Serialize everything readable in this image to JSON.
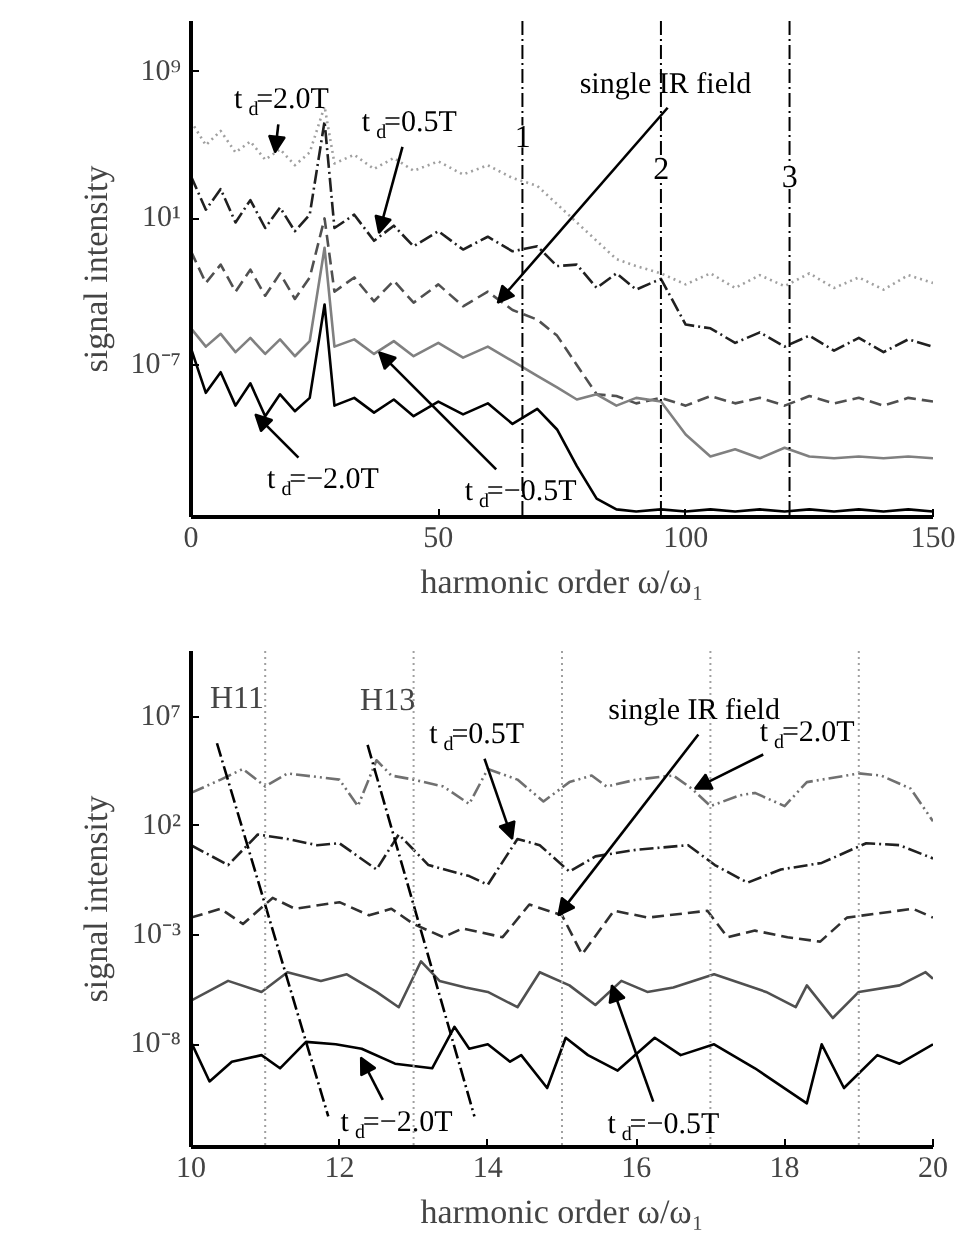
{
  "chart_data": [
    {
      "type": "line",
      "xlabel": "harmonic order ω/ω₁",
      "ylabel": "signal intensity",
      "log": "y",
      "grid": false,
      "xlim": [
        0,
        150
      ],
      "xticks": [
        0,
        50,
        100,
        150
      ],
      "ylim": [
        5e-16,
        600000000000.0
      ],
      "yticks": [
        {
          "value": 1000000000.0,
          "label": "10⁹"
        },
        {
          "value": 10,
          "label": "10¹"
        },
        {
          "value": 1e-07,
          "label": "10⁻⁷"
        }
      ],
      "x": [
        0,
        3,
        6,
        9,
        12,
        15,
        18,
        21,
        24,
        27,
        29,
        33,
        37,
        41,
        45,
        50,
        55,
        60,
        65,
        70,
        74,
        78,
        82,
        86,
        90,
        95,
        100,
        105,
        110,
        115,
        120,
        125,
        130,
        135,
        140,
        145,
        150
      ],
      "series": [
        {
          "color": "#a0a0a0",
          "line_style": "dotted",
          "values": [
            2000000.0,
            100000.0,
            600000.0,
            40000.0,
            160000.0,
            16000.0,
            60000.0,
            8000.0,
            40000.0,
            13000000.0,
            10000.0,
            30000.0,
            5000.0,
            20000.0,
            4000.0,
            13000.0,
            2500.0,
            8000.0,
            1600.0,
            600.0,
            60,
            6,
            0.6,
            0.06,
            0.025,
            0.01,
            0.0025,
            0.01,
            0.0016,
            0.008,
            0.002,
            0.01,
            0.0016,
            0.006,
            0.0013,
            0.008,
            0.003
          ]
        },
        {
          "color": "#202020",
          "line_style": "dashdot",
          "values": [
            2000,
            30,
            400,
            6,
            100,
            3,
            40,
            2,
            16,
            2000000.0,
            3,
            16,
            0.6,
            4,
            0.3,
            2,
            0.2,
            1,
            0.16,
            0.3,
            0.025,
            0.03,
            0.0016,
            0.01,
            0.0013,
            0.005,
            1.6e-05,
            1e-05,
            1.6e-06,
            6e-06,
            1e-06,
            4e-06,
            6e-07,
            3e-06,
            5e-07,
            2.5e-06,
            1e-06
          ]
        },
        {
          "color": "#505050",
          "line_style": "dashed",
          "values": [
            0.16,
            0.003,
            0.03,
            0.001,
            0.016,
            0.0006,
            0.01,
            0.0004,
            0.006,
            10,
            0.001,
            0.006,
            0.0003,
            0.004,
            0.00025,
            0.0025,
            0.00016,
            0.001,
            0.0001,
            3e-05,
            4e-06,
            1e-07,
            2.5e-09,
            2e-09,
            8e-10,
            1.6e-09,
            6e-10,
            2e-09,
            8e-10,
            1.6e-09,
            6e-10,
            2e-09,
            8e-10,
            1.6e-09,
            6e-10,
            1.6e-09,
            1e-09
          ]
        },
        {
          "color": "#808080",
          "line_style": "solid",
          "values": [
            1e-05,
            1e-06,
            5e-06,
            5e-07,
            3e-06,
            4e-07,
            2.5e-06,
            3e-07,
            2e-06,
            0.25,
            1e-06,
            2.5e-06,
            4e-07,
            2e-06,
            3e-07,
            1.6e-06,
            2.5e-07,
            1e-06,
            1.6e-07,
            2.5e-08,
            6e-09,
            1.3e-09,
            2.5e-09,
            6e-10,
            1.6e-09,
            1e-09,
            1.6e-11,
            1e-12,
            2.5e-12,
            8e-13,
            3e-12,
            1e-12,
            8e-13,
            1e-12,
            8e-13,
            1e-12,
            8e-13
          ]
        },
        {
          "color": "#000000",
          "line_style": "solid",
          "values": [
            8e-07,
            3e-09,
            4e-08,
            6e-10,
            1e-08,
            1.6e-10,
            2.5e-09,
            3e-10,
            1.6e-09,
            0.0002,
            6e-10,
            1.6e-09,
            2.5e-10,
            1.3e-09,
            1.6e-10,
            1e-09,
            2e-10,
            8e-10,
            6e-11,
            4e-10,
            3e-11,
            3e-13,
            5e-15,
            1.3e-15,
            1e-15,
            1.3e-15,
            1e-15,
            1.3e-15,
            1e-15,
            1.3e-15,
            1e-15,
            1.3e-15,
            1e-15,
            1.3e-15,
            1e-15,
            1.3e-15,
            1e-15
          ]
        }
      ],
      "ref_lines": [
        {
          "axis": "x",
          "value": 67,
          "color": "#000000",
          "line_style": "dashdot"
        },
        {
          "axis": "x",
          "value": 95,
          "color": "#000000",
          "line_style": "dashdot"
        },
        {
          "axis": "x",
          "value": 121,
          "color": "#000000",
          "line_style": "dashdot"
        }
      ],
      "annotations": [
        {
          "text": "t$_{d}$=2.0T",
          "x": 17,
          "y": 40000.0
        },
        {
          "text": "t$_{d}$=0.5T",
          "x": 38,
          "y": 1.6
        },
        {
          "text": "single IR field",
          "x": 62,
          "y": 0.00025
        },
        {
          "text": "t$_{d}$=−2.0T",
          "x": 13,
          "y": 2e-10
        },
        {
          "text": "t$_{d}$=−0.5T",
          "x": 38,
          "y": 5e-07
        },
        {
          "text": "1",
          "x": 67,
          "y": 300000.0
        },
        {
          "text": "2",
          "x": 95,
          "y": 6000.0
        },
        {
          "text": "3",
          "x": 121,
          "y": 2000.0
        }
      ]
    },
    {
      "type": "line",
      "xlabel": "harmonic order ω/ω₁",
      "ylabel": "signal intensity",
      "log": "y",
      "grid": false,
      "xlim": [
        10,
        20
      ],
      "xticks": [
        10,
        12,
        14,
        16,
        18,
        20
      ],
      "ylim": [
        2e-13,
        10000000000.0
      ],
      "yticks": [
        {
          "value": 10000000.0,
          "label": "10⁷"
        },
        {
          "value": 100,
          "label": "10²"
        },
        {
          "value": 0.001,
          "label": "10⁻³"
        },
        {
          "value": 1e-08,
          "label": "10⁻⁸"
        }
      ],
      "series": [
        {
          "color": "#707070",
          "line_style": "dashdotdot",
          "x": [
            10.0,
            10.4,
            10.7,
            11.0,
            11.3,
            12.0,
            12.25,
            12.5,
            12.7,
            13.0,
            13.4,
            13.75,
            14.0,
            14.4,
            14.75,
            15.1,
            15.4,
            15.6,
            16.0,
            16.5,
            16.75,
            17.0,
            17.4,
            17.6,
            18.0,
            18.3,
            19.0,
            19.3,
            19.7,
            20.0
          ],
          "values": [
            3200.0,
            13000.0,
            40000.0,
            6300.0,
            25000.0,
            13000.0,
            800,
            100000.0,
            20000.0,
            13000.0,
            6300.0,
            1000.0,
            40000.0,
            13000.0,
            1300.0,
            10000.0,
            20000.0,
            6300.0,
            13000.0,
            20000.0,
            5000.0,
            800,
            2500.0,
            3200.0,
            800,
            10000.0,
            25000.0,
            20000.0,
            5000.0,
            160
          ]
        },
        {
          "color": "#202020",
          "line_style": "dashdot",
          "x": [
            10.0,
            10.5,
            10.9,
            11.3,
            11.7,
            12.0,
            12.5,
            12.8,
            13.2,
            13.75,
            14.0,
            14.4,
            14.7,
            15.1,
            15.45,
            16.0,
            16.7,
            17.06,
            17.5,
            17.95,
            18.5,
            19.1,
            19.55,
            20.0
          ],
          "values": [
            13,
            1.6,
            40,
            25,
            13,
            16,
            1,
            40,
            1.6,
            0.5,
            0.2,
            25,
            13,
            0.8,
            4,
            8,
            13,
            1.6,
            0.25,
            1,
            2,
            16,
            13,
            3.2
          ]
        },
        {
          "color": "#303030",
          "line_style": "dashed",
          "x": [
            10.0,
            10.4,
            10.7,
            11.1,
            11.4,
            12.0,
            12.4,
            12.7,
            13.0,
            13.4,
            13.66,
            14.2,
            14.56,
            15.0,
            15.27,
            15.7,
            16.16,
            16.96,
            17.23,
            17.6,
            18.04,
            18.48,
            18.84,
            19.73,
            20.0
          ],
          "values": [
            0.0063,
            0.016,
            0.0032,
            0.05,
            0.016,
            0.032,
            0.008,
            0.016,
            0.0032,
            0.0008,
            0.002,
            0.0008,
            0.025,
            0.008,
            0.00013,
            0.013,
            0.0063,
            0.013,
            0.0008,
            0.0016,
            0.0008,
            0.0005,
            0.0063,
            0.016,
            0.0063
          ]
        },
        {
          "color": "#505050",
          "line_style": "solid",
          "x": [
            10.0,
            10.5,
            10.95,
            11.3,
            11.75,
            12.1,
            12.5,
            12.8,
            13.1,
            13.35,
            13.7,
            14.0,
            14.4,
            14.7,
            15.1,
            15.45,
            15.8,
            16.15,
            16.5,
            17.05,
            17.75,
            18.15,
            18.3,
            18.65,
            19.0,
            19.55,
            19.9,
            20.0
          ],
          "values": [
            1e-06,
            8e-06,
            2.5e-06,
            2e-05,
            8e-06,
            1.6e-05,
            2.5e-06,
            5e-07,
            6.3e-05,
            8e-06,
            4e-06,
            2.5e-06,
            5e-07,
            2e-05,
            5e-06,
            6.3e-07,
            8e-06,
            2.5e-06,
            4e-06,
            1.6e-05,
            2.5e-06,
            5e-07,
            5e-06,
            1.6e-07,
            2.5e-06,
            5e-06,
            2e-05,
            1e-05
          ]
        },
        {
          "color": "#000000",
          "line_style": "solid",
          "x": [
            10.0,
            10.25,
            10.55,
            10.95,
            11.2,
            11.55,
            11.95,
            12.3,
            12.75,
            13.25,
            13.55,
            13.75,
            14.0,
            14.3,
            14.45,
            14.8,
            15.05,
            15.35,
            15.75,
            16.25,
            16.6,
            17.05,
            17.6,
            18.3,
            18.5,
            18.8,
            19.25,
            19.55,
            20.0
          ],
          "values": [
            1.3e-08,
            2e-10,
            1.6e-09,
            3.2e-09,
            8e-10,
            1.3e-08,
            1e-08,
            6.3e-09,
            1.3e-09,
            8e-10,
            6.3e-08,
            6.3e-09,
            1e-08,
            1.6e-09,
            3.2e-09,
            1e-10,
            2e-08,
            3.2e-09,
            6.3e-10,
            2e-08,
            3.2e-09,
            1e-08,
            8e-10,
            2e-11,
            1e-08,
            1e-10,
            3.2e-09,
            1.3e-09,
            1e-08
          ]
        },
        {
          "name": "H11",
          "color": "#000000",
          "line_style": "dashdot",
          "x": [
            10.35,
            11.85
          ],
          "values": [
            600000.0,
            5e-12
          ]
        },
        {
          "name": "H13",
          "color": "#000000",
          "line_style": "dashdot",
          "x": [
            12.38,
            13.82
          ],
          "values": [
            500000.0,
            5e-12
          ]
        }
      ],
      "ref_lines": [
        {
          "axis": "x",
          "value": 11,
          "color": "#a0a0a0",
          "line_style": "dotted"
        },
        {
          "axis": "x",
          "value": 13,
          "color": "#a0a0a0",
          "line_style": "dotted"
        },
        {
          "axis": "x",
          "value": 15,
          "color": "#a0a0a0",
          "line_style": "dotted"
        },
        {
          "axis": "x",
          "value": 17,
          "color": "#a0a0a0",
          "line_style": "dotted"
        },
        {
          "axis": "x",
          "value": 19,
          "color": "#a0a0a0",
          "line_style": "dotted"
        }
      ],
      "annotations": [
        {
          "text": "t$_{d}$=0.5T",
          "x": 14.33,
          "y": 25
        },
        {
          "text": "single IR field",
          "x": 14.95,
          "y": 0.008
        },
        {
          "text": "t$_{d}$=2.0T",
          "x": 16.79,
          "y": 5000.0
        },
        {
          "text": "t$_{d}$=−0.5T",
          "x": 15.67,
          "y": 5e-06
        },
        {
          "text": "t$_{d}$=−2.0T",
          "x": 12.29,
          "y": 2.5e-09
        }
      ]
    }
  ]
}
